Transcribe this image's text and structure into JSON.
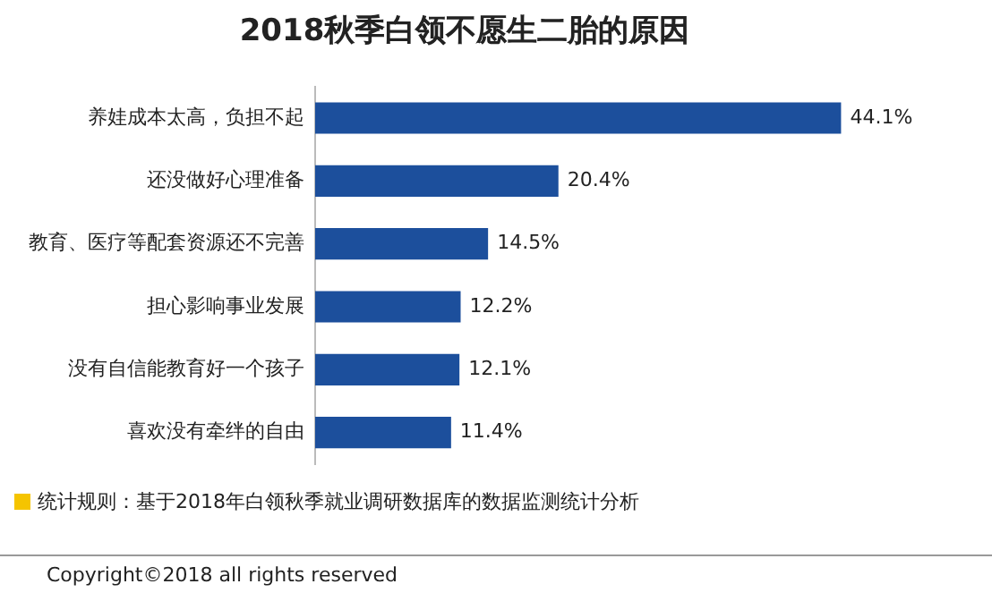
{
  "chart_data": {
    "type": "bar",
    "orientation": "horizontal",
    "title": "2018秋季白领不愿生二胎的原因",
    "categories": [
      "养娃成本太高，负担不起",
      "还没做好心理准备",
      "教育、医疗等配套资源还不完善",
      "担心影响事业发展",
      "没有自信能教育好一个孩子",
      "喜欢没有牵绊的自由"
    ],
    "values": [
      44.1,
      20.4,
      14.5,
      12.2,
      12.1,
      11.4
    ],
    "value_labels": [
      "44.1%",
      "20.4%",
      "14.5%",
      "12.2%",
      "12.1%",
      "11.4%"
    ],
    "color": "#1c4f9c",
    "grid": false,
    "legend": false,
    "tick_labels": "y",
    "annotations": [
      "统计规则：基于2018年白领秋季就业调研数据库的数据监测统计分析",
      "Copyright©2018 all rights reserved"
    ]
  }
}
